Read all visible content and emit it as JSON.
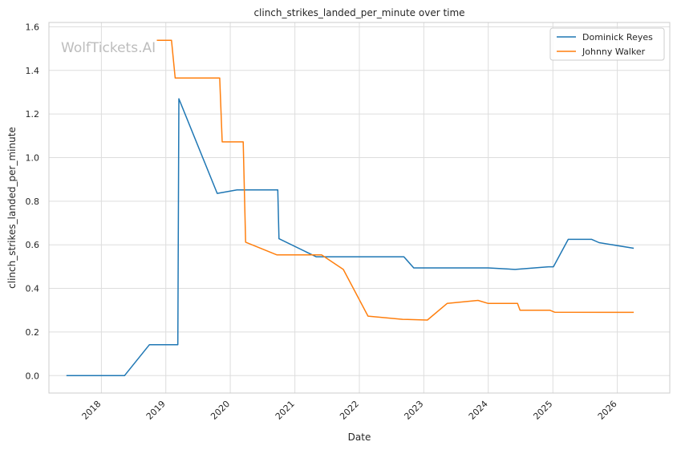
{
  "chart_data": {
    "type": "line",
    "title": "clinch_strikes_landed_per_minute over time",
    "xlabel": "Date",
    "ylabel": "clinch_strikes_landed_per_minute",
    "watermark": "WolfTickets.AI",
    "x_ticks": [
      "2018",
      "2019",
      "2020",
      "2021",
      "2022",
      "2023",
      "2024",
      "2025",
      "2026"
    ],
    "y_ticks": [
      "0.0",
      "0.2",
      "0.4",
      "0.6",
      "0.8",
      "1.0",
      "1.2",
      "1.4",
      "1.6"
    ],
    "xlim": [
      "2017-03-10",
      "2026-10-25"
    ],
    "ylim": [
      -0.08,
      1.62
    ],
    "grid": true,
    "legend_position": "top-right",
    "series": [
      {
        "name": "Dominick Reyes",
        "color": "#1f77b4",
        "points": [
          [
            "2017-06-17",
            0.0
          ],
          [
            "2018-05-12",
            0.0
          ],
          [
            "2018-09-30",
            0.142
          ],
          [
            "2019-03-10",
            0.142
          ],
          [
            "2019-03-16",
            1.27
          ],
          [
            "2019-10-19",
            0.836
          ],
          [
            "2020-02-08",
            0.852
          ],
          [
            "2020-09-26",
            0.852
          ],
          [
            "2020-10-03",
            0.628
          ],
          [
            "2021-05-01",
            0.545
          ],
          [
            "2022-09-10",
            0.545
          ],
          [
            "2022-11-05",
            0.494
          ],
          [
            "2024-01-01",
            0.494
          ],
          [
            "2024-06-01",
            0.487
          ],
          [
            "2024-12-07",
            0.499
          ],
          [
            "2025-01-04",
            0.499
          ],
          [
            "2025-03-29",
            0.625
          ],
          [
            "2025-08-09",
            0.625
          ],
          [
            "2025-09-20",
            0.61
          ],
          [
            "2026-04-04",
            0.584
          ]
        ]
      },
      {
        "name": "Johnny Walker",
        "color": "#ff7f0e",
        "points": [
          [
            "2018-11-11",
            1.538
          ],
          [
            "2019-02-02",
            1.538
          ],
          [
            "2019-02-23",
            1.365
          ],
          [
            "2019-11-02",
            1.365
          ],
          [
            "2019-11-16",
            1.072
          ],
          [
            "2020-03-14",
            1.072
          ],
          [
            "2020-03-28",
            0.612
          ],
          [
            "2020-09-20",
            0.554
          ],
          [
            "2021-06-01",
            0.554
          ],
          [
            "2021-10-02",
            0.487
          ],
          [
            "2022-02-19",
            0.273
          ],
          [
            "2022-09-03",
            0.258
          ],
          [
            "2023-01-21",
            0.255
          ],
          [
            "2023-05-13",
            0.331
          ],
          [
            "2023-11-04",
            0.345
          ],
          [
            "2024-01-01",
            0.331
          ],
          [
            "2024-06-15",
            0.331
          ],
          [
            "2024-06-29",
            0.3
          ],
          [
            "2024-12-14",
            0.3
          ],
          [
            "2025-01-11",
            0.291
          ],
          [
            "2026-04-04",
            0.29
          ]
        ]
      }
    ]
  }
}
